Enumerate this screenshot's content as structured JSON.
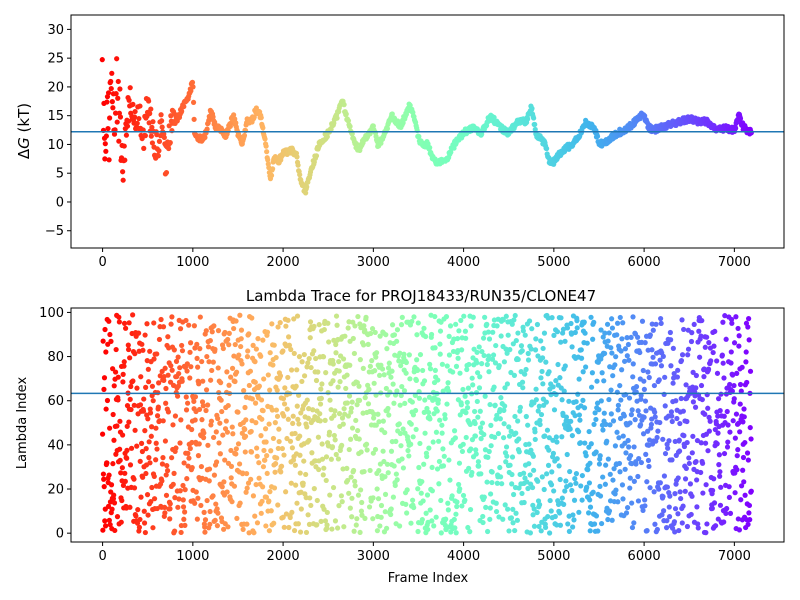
{
  "chart_data": [
    {
      "type": "scatter",
      "title": "",
      "xlabel": "",
      "ylabel_parts": [
        "Δ",
        "G",
        " (kT)"
      ],
      "xlim": [
        -350,
        7550
      ],
      "ylim": [
        -8,
        32.5
      ],
      "xticks": [
        0,
        1000,
        2000,
        3000,
        4000,
        5000,
        6000,
        7000
      ],
      "yticks": [
        -5,
        0,
        5,
        10,
        15,
        20,
        25,
        30
      ],
      "reference_line": 12.2,
      "reference_line_color": "#1f77b4",
      "colormap": "rainbow (red at frame 0 → violet at last frame)",
      "series_x_range": [
        0,
        7190
      ],
      "trace_anchors": [
        [
          0,
          22
        ],
        [
          25,
          8
        ],
        [
          50,
          18
        ],
        [
          75,
          12
        ],
        [
          100,
          22
        ],
        [
          130,
          14
        ],
        [
          160,
          20
        ],
        [
          200,
          11
        ],
        [
          230,
          5
        ],
        [
          260,
          14
        ],
        [
          300,
          18
        ],
        [
          350,
          13
        ],
        [
          400,
          15
        ],
        [
          450,
          11
        ],
        [
          500,
          17
        ],
        [
          550,
          12
        ],
        [
          600,
          9
        ],
        [
          650,
          13
        ],
        [
          700,
          7
        ],
        [
          750,
          12
        ],
        [
          800,
          14
        ],
        [
          850,
          15
        ],
        [
          900,
          17
        ],
        [
          950,
          18
        ],
        [
          1000,
          21
        ],
        [
          1020,
          12
        ],
        [
          1050,
          11
        ],
        [
          1100,
          11
        ],
        [
          1150,
          12
        ],
        [
          1200,
          16
        ],
        [
          1250,
          13
        ],
        [
          1300,
          13
        ],
        [
          1350,
          11
        ],
        [
          1400,
          13
        ],
        [
          1450,
          15
        ],
        [
          1500,
          12
        ],
        [
          1550,
          10
        ],
        [
          1600,
          14
        ],
        [
          1650,
          14
        ],
        [
          1700,
          16
        ],
        [
          1750,
          15
        ],
        [
          1800,
          11
        ],
        [
          1850,
          5
        ],
        [
          1870,
          4
        ],
        [
          1900,
          8
        ],
        [
          1950,
          7
        ],
        [
          2000,
          8.5
        ],
        [
          2100,
          9
        ],
        [
          2150,
          8
        ],
        [
          2200,
          3
        ],
        [
          2250,
          2
        ],
        [
          2300,
          5
        ],
        [
          2400,
          10
        ],
        [
          2500,
          12
        ],
        [
          2600,
          15
        ],
        [
          2650,
          18
        ],
        [
          2700,
          15
        ],
        [
          2800,
          10
        ],
        [
          2850,
          9
        ],
        [
          2900,
          11
        ],
        [
          3000,
          13
        ],
        [
          3050,
          10
        ],
        [
          3100,
          11
        ],
        [
          3200,
          15
        ],
        [
          3300,
          13
        ],
        [
          3400,
          17
        ],
        [
          3450,
          15
        ],
        [
          3500,
          11
        ],
        [
          3550,
          10
        ],
        [
          3600,
          10
        ],
        [
          3650,
          8
        ],
        [
          3700,
          7
        ],
        [
          3800,
          7
        ],
        [
          3900,
          10
        ],
        [
          4000,
          12
        ],
        [
          4100,
          13
        ],
        [
          4200,
          12
        ],
        [
          4300,
          15
        ],
        [
          4350,
          14
        ],
        [
          4400,
          13
        ],
        [
          4500,
          12
        ],
        [
          4600,
          14
        ],
        [
          4700,
          14
        ],
        [
          4750,
          16.5
        ],
        [
          4800,
          12
        ],
        [
          4900,
          10
        ],
        [
          4950,
          7
        ],
        [
          5000,
          7
        ],
        [
          5100,
          9
        ],
        [
          5200,
          10
        ],
        [
          5300,
          12
        ],
        [
          5350,
          14
        ],
        [
          5450,
          13
        ],
        [
          5500,
          10
        ],
        [
          5600,
          10.5
        ],
        [
          5700,
          12
        ],
        [
          5800,
          12.5
        ],
        [
          5900,
          14
        ],
        [
          5950,
          15
        ],
        [
          6000,
          15
        ],
        [
          6050,
          13
        ],
        [
          6100,
          12.5
        ],
        [
          6200,
          13
        ],
        [
          6300,
          13.5
        ],
        [
          6400,
          14
        ],
        [
          6500,
          14.5
        ],
        [
          6600,
          14
        ],
        [
          6700,
          14
        ],
        [
          6750,
          13
        ],
        [
          6800,
          12.8
        ],
        [
          6900,
          12.8
        ],
        [
          7000,
          12.5
        ],
        [
          7050,
          15
        ],
        [
          7100,
          13
        ],
        [
          7190,
          12
        ]
      ]
    },
    {
      "type": "scatter",
      "title": "Lambda Trace for PROJ18433/RUN35/CLONE47",
      "xlabel": "Frame Index",
      "ylabel": "Lambda Index",
      "xlim": [
        -350,
        7550
      ],
      "ylim": [
        -4,
        102
      ],
      "xticks": [
        0,
        1000,
        2000,
        3000,
        4000,
        5000,
        6000,
        7000
      ],
      "yticks": [
        0,
        20,
        40,
        60,
        80,
        100
      ],
      "reference_line": 63.3,
      "reference_line_color": "#1f77b4",
      "colormap": "rainbow (red at frame 0 → violet at last frame)",
      "series_x_range": [
        0,
        7190
      ],
      "lambda_range": [
        0,
        99
      ]
    }
  ]
}
